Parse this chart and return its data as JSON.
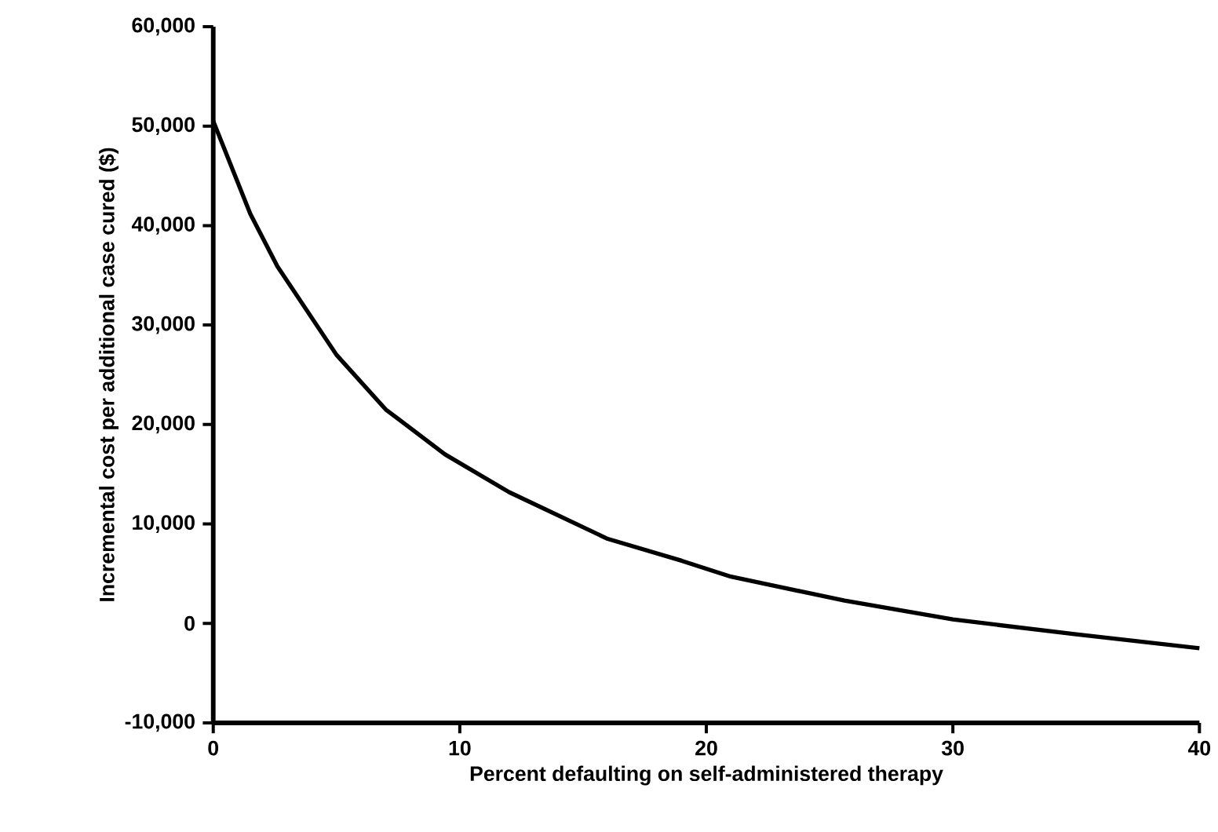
{
  "chart_data": {
    "type": "line",
    "xlabel": "Percent defaulting on self-administered therapy",
    "ylabel": "Incremental cost per additional case cured ($)",
    "x": [
      0,
      1.5,
      2.6,
      5,
      7,
      9.4,
      12,
      16,
      19,
      21,
      25.6,
      30,
      35,
      40
    ],
    "series": [
      {
        "color": "#000000",
        "values": [
          50500,
          41200,
          35900,
          27000,
          21500,
          17000,
          13200,
          8500,
          6300,
          4700,
          2300,
          400,
          -1100,
          -2500
        ]
      }
    ],
    "xlim": [
      0,
      40
    ],
    "ylim": [
      -10000,
      60000
    ],
    "xticks": [
      0,
      10,
      20,
      30,
      40
    ],
    "yticks": [
      {
        "value": -10000,
        "label": "-10,000"
      },
      0,
      {
        "value": 10000,
        "label": "10,000"
      },
      {
        "value": 20000,
        "label": "20,000"
      },
      {
        "value": 30000,
        "label": "30,000"
      },
      {
        "value": 40000,
        "label": "40,000"
      },
      {
        "value": 50000,
        "label": "50,000"
      },
      {
        "value": 60000,
        "label": "60,000"
      }
    ]
  }
}
